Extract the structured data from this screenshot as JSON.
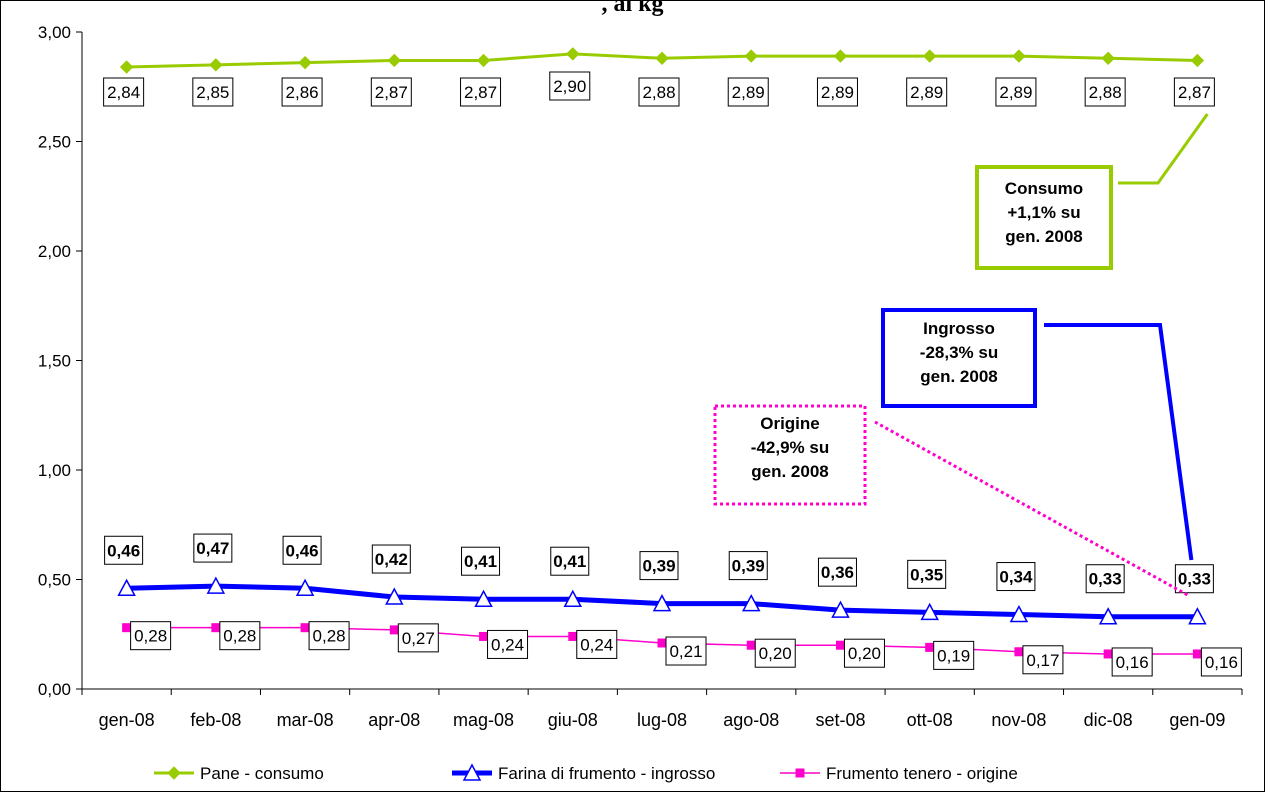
{
  "title": ", al kg",
  "chart_data": {
    "type": "line",
    "categories": [
      "gen-08",
      "feb-08",
      "mar-08",
      "apr-08",
      "mag-08",
      "giu-08",
      "lug-08",
      "ago-08",
      "set-08",
      "ott-08",
      "nov-08",
      "dic-08",
      "gen-09"
    ],
    "ylim": [
      0,
      3
    ],
    "yticks": [
      "0,00",
      "0,50",
      "1,00",
      "1,50",
      "2,00",
      "2,50",
      "3,00"
    ],
    "grid": false,
    "legend_position": "bottom",
    "series": [
      {
        "name": "Pane - consumo",
        "color": "#99CC00",
        "marker": "diamond",
        "values": [
          2.84,
          2.85,
          2.86,
          2.87,
          2.87,
          2.9,
          2.88,
          2.89,
          2.89,
          2.89,
          2.89,
          2.88,
          2.87
        ],
        "labels": [
          "2,84",
          "2,85",
          "2,86",
          "2,87",
          "2,87",
          "2,90",
          "2,88",
          "2,89",
          "2,89",
          "2,89",
          "2,89",
          "2,88",
          "2,87"
        ]
      },
      {
        "name": "Farina di frumento - ingrosso",
        "color": "#0000FF",
        "marker": "triangle",
        "values": [
          0.46,
          0.47,
          0.46,
          0.42,
          0.41,
          0.41,
          0.39,
          0.39,
          0.36,
          0.35,
          0.34,
          0.33,
          0.33
        ],
        "labels": [
          "0,46",
          "0,47",
          "0,46",
          "0,42",
          "0,41",
          "0,41",
          "0,39",
          "0,39",
          "0,36",
          "0,35",
          "0,34",
          "0,33",
          "0,33"
        ]
      },
      {
        "name": "Frumento tenero - origine",
        "color": "#FF00CC",
        "marker": "square",
        "values": [
          0.28,
          0.28,
          0.28,
          0.27,
          0.24,
          0.24,
          0.21,
          0.2,
          0.2,
          0.19,
          0.17,
          0.16,
          0.16
        ],
        "labels": [
          "0,28",
          "0,28",
          "0,28",
          "0,27",
          "0,24",
          "0,24",
          "0,21",
          "0,20",
          "0,20",
          "0,19",
          "0,17",
          "0,16",
          "0,16"
        ]
      }
    ],
    "annotations": [
      {
        "series": 0,
        "lines": [
          "Consumo",
          "+1,1% su",
          "gen. 2008"
        ],
        "color": "#99CC00",
        "style": "solid"
      },
      {
        "series": 1,
        "lines": [
          "Ingrosso",
          "-28,3% su",
          "gen. 2008"
        ],
        "color": "#0000FF",
        "style": "solid"
      },
      {
        "series": 2,
        "lines": [
          "Origine",
          "-42,9% su",
          "gen. 2008"
        ],
        "color": "#FF00CC",
        "style": "dotted"
      }
    ]
  }
}
